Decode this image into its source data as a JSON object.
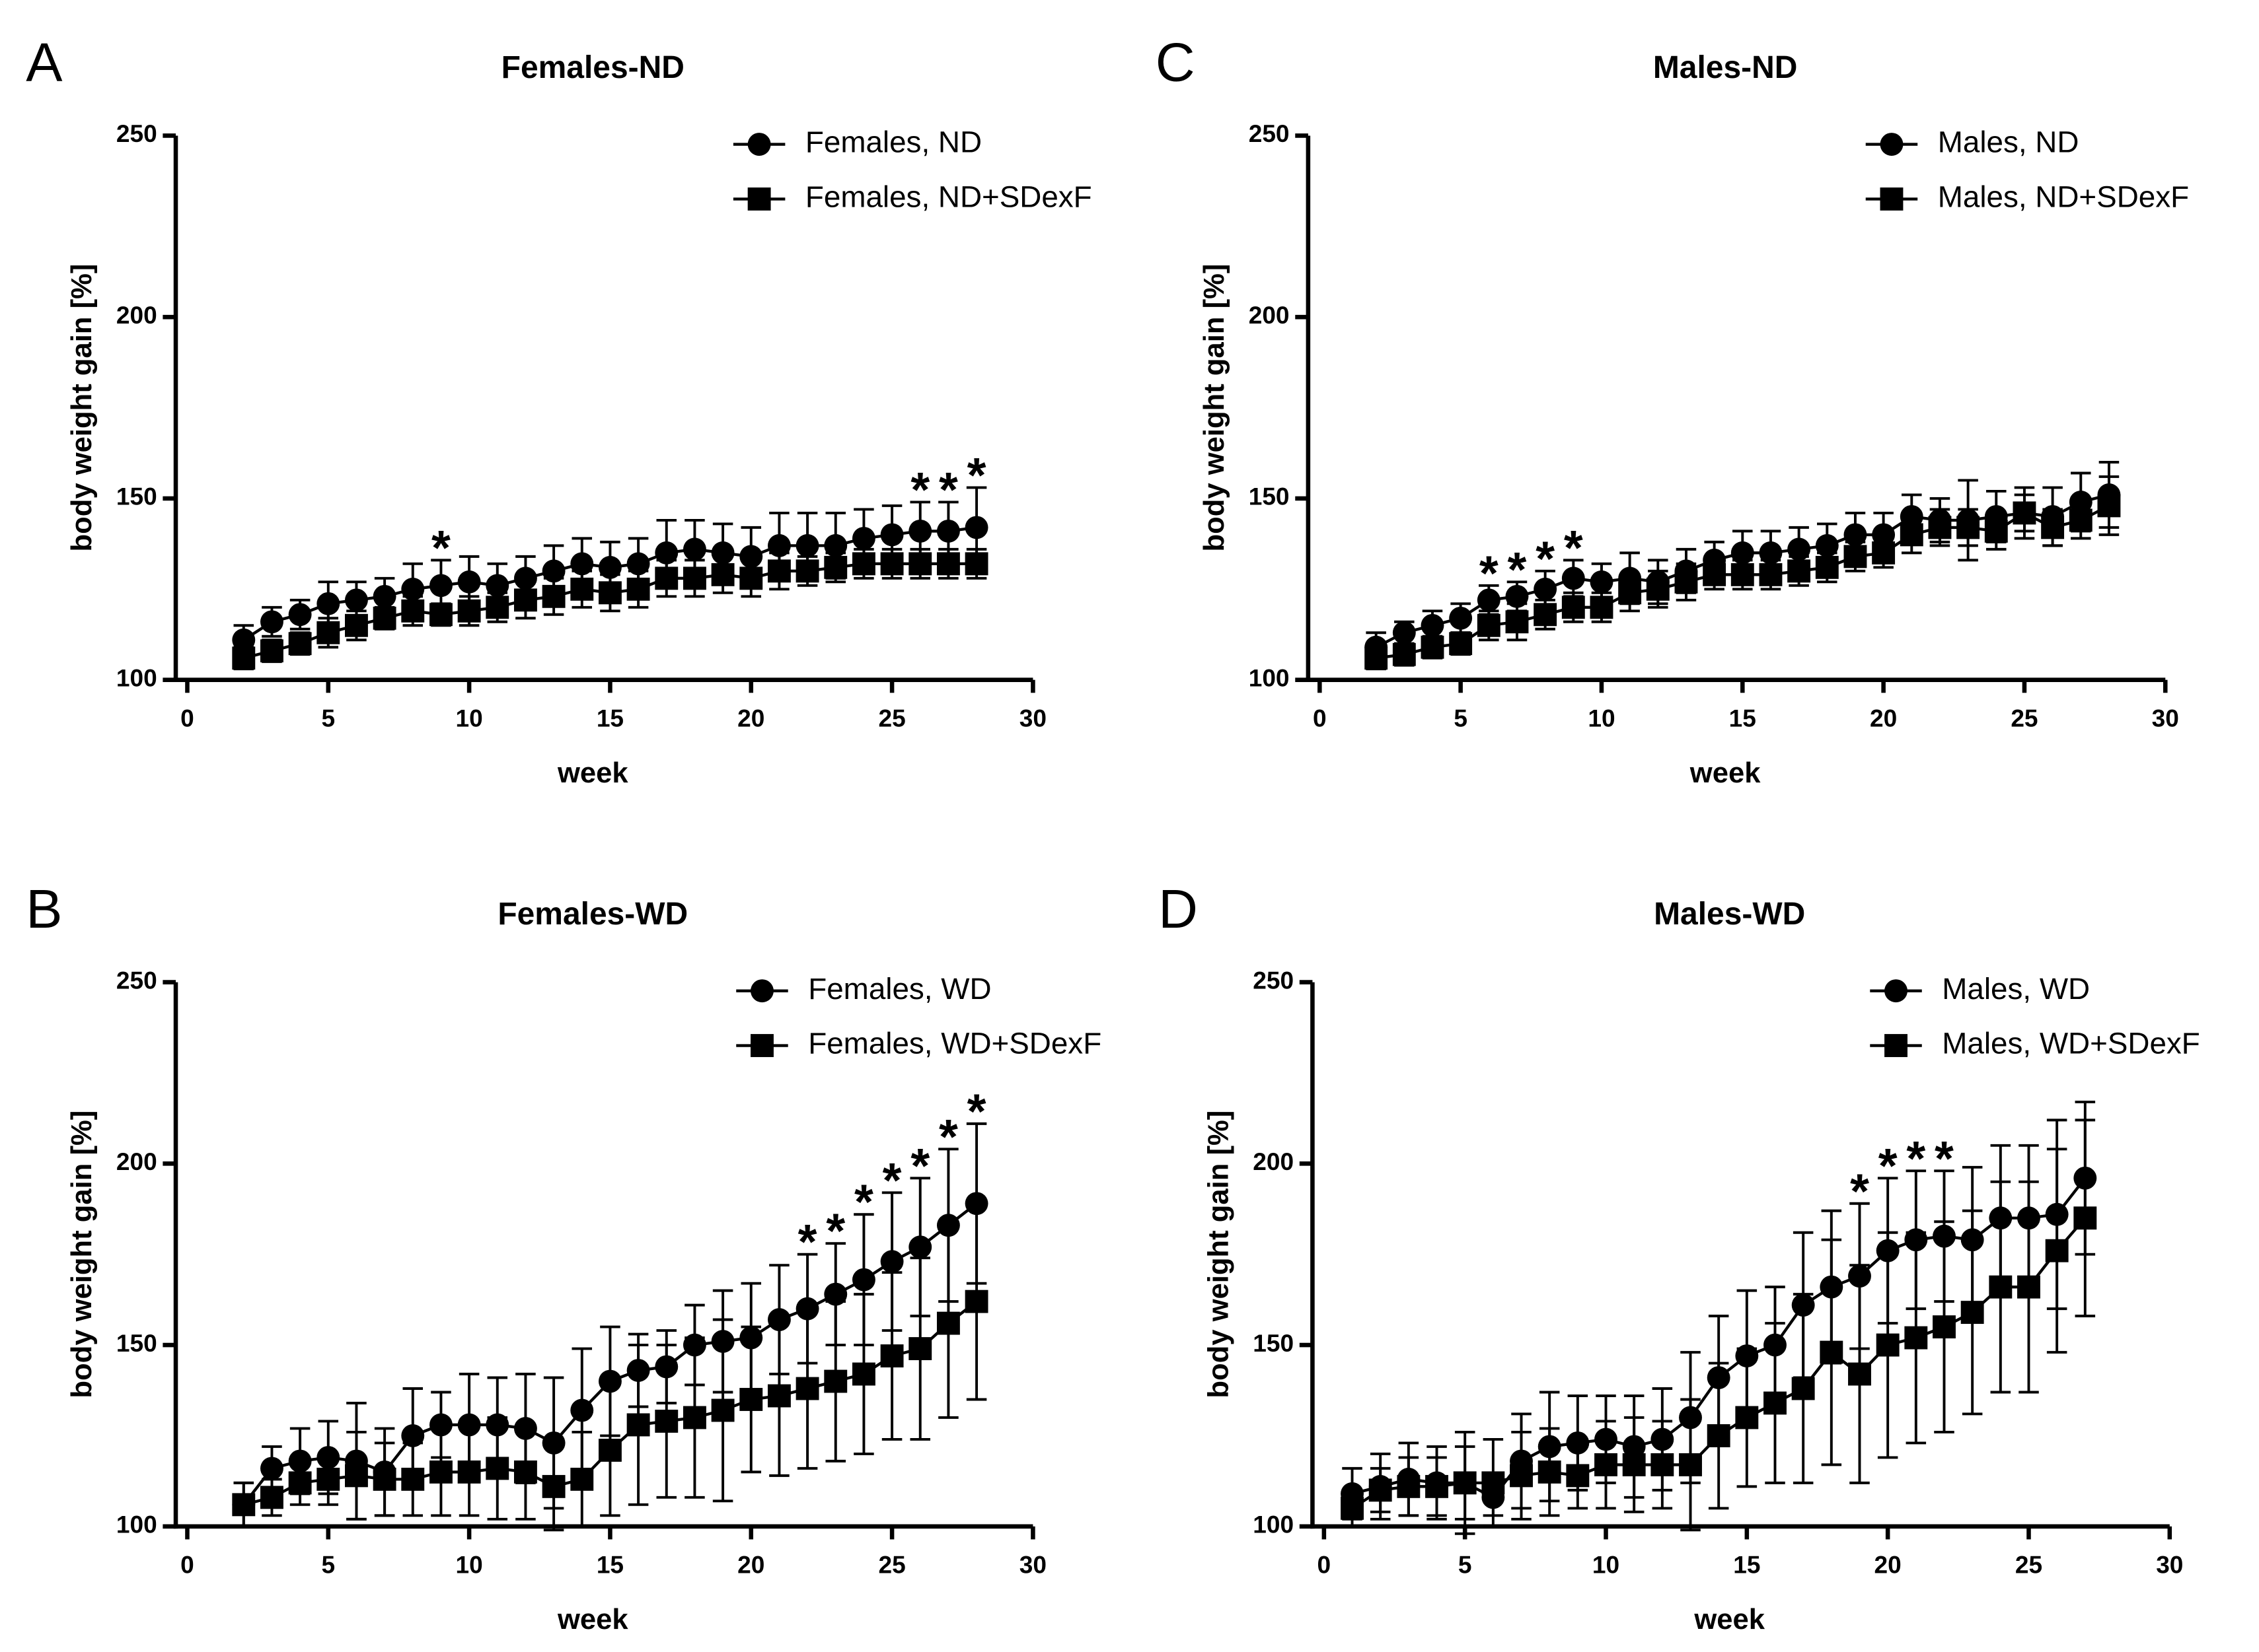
{
  "chart_data": [
    {
      "type": "line",
      "panel_label": "A",
      "title": "Females-ND",
      "xlabel": "week",
      "ylabel": "body weight gain [%]",
      "x": [
        2,
        3,
        4,
        5,
        6,
        7,
        8,
        9,
        10,
        11,
        12,
        13,
        14,
        15,
        16,
        17,
        18,
        19,
        20,
        21,
        22,
        23,
        24,
        25,
        26,
        27,
        28
      ],
      "series": [
        {
          "name": "Females, ND",
          "marker": "circle",
          "color": "#000000",
          "values": [
            111,
            116,
            118,
            121,
            122,
            123,
            125,
            126,
            127,
            126,
            128,
            130,
            132,
            131,
            132,
            135,
            136,
            135,
            134,
            137,
            137,
            137,
            139,
            140,
            141,
            141,
            142
          ],
          "errors": [
            4,
            4,
            4,
            6,
            5,
            5,
            7,
            7,
            7,
            6,
            6,
            7,
            7,
            7,
            7,
            9,
            8,
            8,
            8,
            9,
            9,
            9,
            8,
            8,
            8,
            8,
            11
          ]
        },
        {
          "name": "Females, ND+SDexF",
          "marker": "square",
          "color": "#000000",
          "values": [
            106,
            108,
            110,
            113,
            115,
            117,
            119,
            118,
            119,
            120,
            122,
            123,
            125,
            124,
            125,
            128,
            128,
            129,
            128,
            130,
            130,
            131,
            132,
            132,
            132,
            132,
            132
          ],
          "errors": [
            3,
            3,
            3,
            4,
            4,
            3,
            4,
            3,
            4,
            4,
            5,
            5,
            5,
            5,
            5,
            5,
            5,
            5,
            5,
            5,
            4,
            4,
            4,
            4,
            4,
            4,
            4
          ]
        }
      ],
      "xlim": [
        0,
        30
      ],
      "xticks": [
        0,
        5,
        10,
        15,
        20,
        25,
        30
      ],
      "ylim": [
        100,
        250
      ],
      "yticks": [
        100,
        150,
        200,
        250
      ],
      "legend": "top-right",
      "significance": {
        "label": "*",
        "x": [
          9,
          26,
          27,
          28
        ]
      }
    },
    {
      "type": "line",
      "panel_label": "B",
      "title": "Females-WD",
      "xlabel": "week",
      "ylabel": "body weight gain [%]",
      "x": [
        2,
        3,
        4,
        5,
        6,
        7,
        8,
        9,
        10,
        11,
        12,
        13,
        14,
        15,
        16,
        17,
        18,
        19,
        20,
        21,
        22,
        23,
        24,
        25,
        26,
        27,
        28
      ],
      "series": [
        {
          "name": "Females, WD",
          "marker": "circle",
          "color": "#000000",
          "values": [
            106,
            116,
            118,
            119,
            118,
            115,
            125,
            128,
            128,
            128,
            127,
            123,
            132,
            140,
            143,
            144,
            150,
            151,
            152,
            157,
            160,
            164,
            168,
            173,
            177,
            183,
            189
          ],
          "errors": [
            6,
            6,
            9,
            10,
            16,
            12,
            13,
            9,
            14,
            13,
            15,
            18,
            17,
            15,
            10,
            10,
            11,
            14,
            15,
            15,
            15,
            14,
            18,
            19,
            19,
            21,
            22
          ]
        },
        {
          "name": "Females, WD+SDexF",
          "marker": "square",
          "color": "#000000",
          "values": [
            106,
            108,
            112,
            113,
            114,
            113,
            113,
            115,
            115,
            116,
            115,
            111,
            113,
            121,
            128,
            129,
            130,
            132,
            135,
            136,
            138,
            140,
            142,
            147,
            149,
            156,
            162
          ],
          "errors": [
            6,
            5,
            6,
            7,
            12,
            10,
            10,
            12,
            12,
            14,
            13,
            12,
            13,
            18,
            22,
            21,
            22,
            25,
            20,
            22,
            22,
            22,
            22,
            23,
            25,
            26,
            27
          ]
        }
      ],
      "xlim": [
        0,
        30
      ],
      "xticks": [
        0,
        5,
        10,
        15,
        20,
        25,
        30
      ],
      "ylim": [
        100,
        250
      ],
      "yticks": [
        100,
        150,
        200,
        250
      ],
      "legend": "top-right",
      "significance": {
        "label": "*",
        "x": [
          22,
          23,
          24,
          25,
          26,
          27,
          28
        ]
      }
    },
    {
      "type": "line",
      "panel_label": "C",
      "title": "Males-ND",
      "xlabel": "week",
      "ylabel": "body weight gain [%]",
      "x": [
        2,
        3,
        4,
        5,
        6,
        7,
        8,
        9,
        10,
        11,
        12,
        13,
        14,
        15,
        16,
        17,
        18,
        19,
        20,
        21,
        22,
        23,
        24,
        25,
        26,
        27,
        28
      ],
      "series": [
        {
          "name": "Males, ND",
          "marker": "circle",
          "color": "#000000",
          "values": [
            109,
            113,
            115,
            117,
            122,
            123,
            125,
            128,
            127,
            128,
            127,
            130,
            133,
            135,
            135,
            136,
            137,
            140,
            140,
            145,
            144,
            144,
            145,
            146,
            145,
            149,
            151
          ],
          "errors": [
            4,
            3,
            4,
            4,
            4,
            4,
            5,
            5,
            5,
            7,
            6,
            6,
            5,
            6,
            6,
            6,
            6,
            6,
            6,
            6,
            6,
            11,
            7,
            7,
            8,
            8,
            9
          ]
        },
        {
          "name": "Males, ND+SDexF",
          "marker": "square",
          "color": "#000000",
          "values": [
            106,
            107,
            109,
            110,
            115,
            116,
            118,
            120,
            120,
            124,
            125,
            127,
            129,
            129,
            129,
            130,
            131,
            134,
            135,
            140,
            142,
            142,
            141,
            146,
            142,
            144,
            148
          ],
          "errors": [
            3,
            3,
            3,
            3,
            4,
            5,
            4,
            4,
            4,
            5,
            5,
            5,
            4,
            4,
            4,
            4,
            4,
            4,
            4,
            5,
            5,
            5,
            5,
            5,
            5,
            5,
            8
          ]
        }
      ],
      "xlim": [
        0,
        30
      ],
      "xticks": [
        0,
        5,
        10,
        15,
        20,
        25,
        30
      ],
      "ylim": [
        100,
        250
      ],
      "yticks": [
        100,
        150,
        200,
        250
      ],
      "legend": "top-right",
      "significance": {
        "label": "*",
        "x": [
          6,
          7,
          8,
          9
        ]
      }
    },
    {
      "type": "line",
      "panel_label": "D",
      "title": "Males-WD",
      "xlabel": "week",
      "ylabel": "body weight gain [%]",
      "x": [
        1,
        2,
        3,
        4,
        5,
        6,
        7,
        8,
        9,
        10,
        11,
        12,
        13,
        14,
        15,
        16,
        17,
        18,
        19,
        20,
        21,
        22,
        23,
        24,
        25,
        26,
        27
      ],
      "series": [
        {
          "name": "Males, WD",
          "marker": "circle",
          "color": "#000000",
          "values": [
            109,
            111,
            113,
            112,
            112,
            108,
            118,
            122,
            123,
            124,
            122,
            124,
            130,
            141,
            147,
            150,
            161,
            166,
            169,
            176,
            179,
            180,
            179,
            185,
            185,
            186,
            196
          ],
          "errors": [
            7,
            9,
            10,
            10,
            14,
            5,
            13,
            15,
            13,
            12,
            14,
            14,
            18,
            17,
            18,
            16,
            20,
            21,
            20,
            20,
            19,
            18,
            20,
            20,
            20,
            26,
            21
          ]
        },
        {
          "name": "Males, WD+SDexF",
          "marker": "square",
          "color": "#000000",
          "values": [
            105,
            110,
            111,
            111,
            112,
            112,
            114,
            115,
            114,
            117,
            117,
            117,
            117,
            125,
            130,
            134,
            138,
            148,
            142,
            150,
            152,
            155,
            159,
            166,
            166,
            176,
            185
          ],
          "errors": [
            5,
            6,
            8,
            8,
            10,
            12,
            12,
            12,
            9,
            12,
            13,
            12,
            18,
            20,
            19,
            22,
            26,
            31,
            30,
            31,
            29,
            29,
            28,
            29,
            29,
            28,
            27
          ]
        }
      ],
      "xlim": [
        0,
        30
      ],
      "xticks": [
        0,
        5,
        10,
        15,
        20,
        25,
        30
      ],
      "ylim": [
        100,
        250
      ],
      "yticks": [
        100,
        150,
        200,
        250
      ],
      "legend": "top-right",
      "significance": {
        "label": "*",
        "x": [
          19,
          20,
          21,
          22
        ]
      }
    }
  ]
}
